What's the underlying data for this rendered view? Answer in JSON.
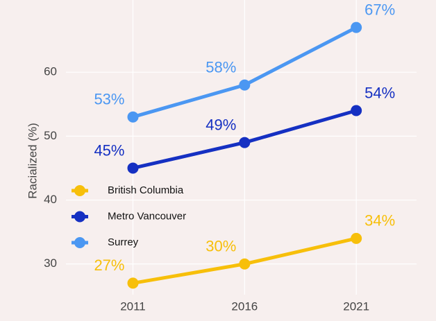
{
  "chart_data": {
    "type": "line",
    "y_label": "Racialized (%)",
    "x": [
      2011,
      2016,
      2021
    ],
    "xlim": [
      2008,
      2023.7
    ],
    "xticks": [
      2011,
      2016,
      2021
    ],
    "ylim": [
      25.2,
      71.3
    ],
    "yticks": [
      30,
      40,
      50,
      60
    ],
    "grid": true,
    "legend": "center left",
    "series": [
      {
        "name": "British Columbia",
        "color": "#f7bf0a",
        "values": [
          27,
          30,
          34
        ],
        "value_labels": [
          "27%",
          "30%",
          "34%"
        ]
      },
      {
        "name": "Metro Vancouver",
        "color": "#1530c2",
        "values": [
          45,
          49,
          54
        ],
        "value_labels": [
          "45%",
          "49%",
          "54%"
        ]
      },
      {
        "name": "Surrey",
        "color": "#4b97f2",
        "values": [
          53,
          58,
          67
        ],
        "value_labels": [
          "53%",
          "58%",
          "67%"
        ]
      }
    ]
  }
}
